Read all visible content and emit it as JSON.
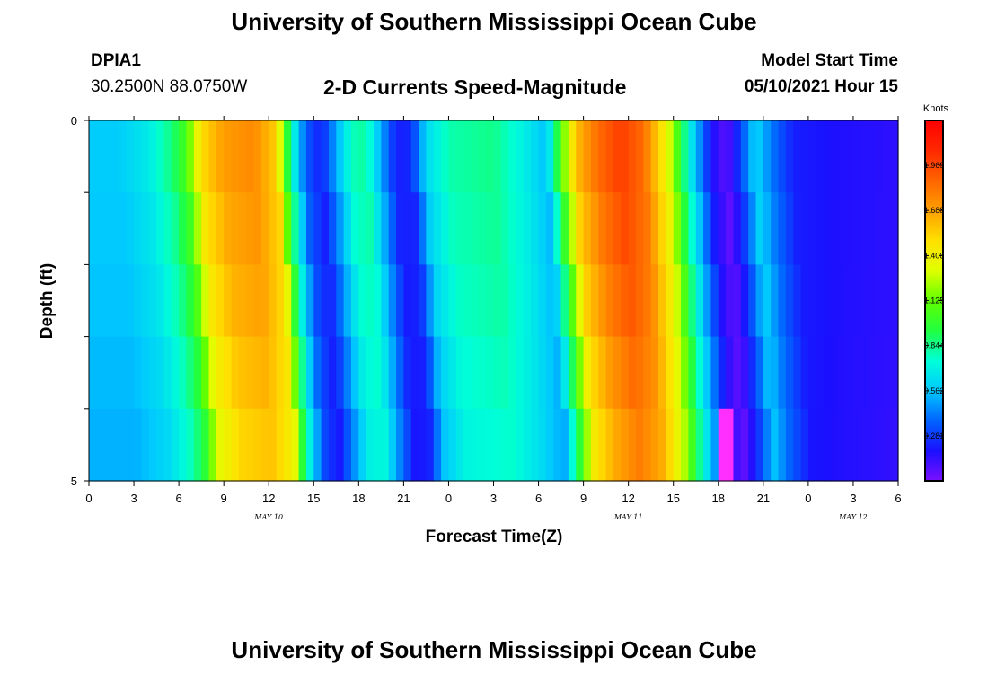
{
  "header": {
    "title": "University of Southern Mississippi Ocean Cube",
    "station": "DPIA1",
    "coords": "30.2500N  88.0750W",
    "chart_title": "2-D Currents Speed-Magnitude",
    "model_start_label": "Model Start Time",
    "model_start_value": "05/10/2021 Hour 15"
  },
  "footer": {
    "title": "University of Southern Mississippi Ocean Cube"
  },
  "chart_data": {
    "type": "heatmap",
    "title": "2-D Currents Speed-Magnitude",
    "xlabel": "Forecast Time(Z)",
    "ylabel": "Depth (ft)",
    "units": "Knots",
    "x_range_hours": [
      0,
      54
    ],
    "y_range": [
      0,
      5
    ],
    "y_ticks": [
      "0",
      "5"
    ],
    "x_tick_labels": [
      "0",
      "3",
      "6",
      "9",
      "12",
      "15",
      "18",
      "21",
      "0",
      "3",
      "6",
      "9",
      "12",
      "15",
      "18",
      "21",
      "0",
      "3",
      "6"
    ],
    "day_labels": [
      {
        "label": "MAY  10",
        "hour": 12
      },
      {
        "label": "MAY  11",
        "hour": 36
      },
      {
        "label": "MAY  12",
        "hour": 51
      }
    ],
    "colorbar": {
      "min": 0,
      "max": 2.25,
      "tick_labels": [
        "1.969",
        "1.688",
        "1.406",
        "1.125",
        "0.844",
        "0.562",
        "0.281"
      ],
      "tick_values": [
        1.969,
        1.688,
        1.406,
        1.125,
        0.844,
        0.562,
        0.281
      ],
      "colors": [
        "#7a10ff",
        "#1a10ff",
        "#0064ff",
        "#00c8ff",
        "#00ffd8",
        "#20ff40",
        "#60ff00",
        "#e0ff00",
        "#ffe000",
        "#ffa000",
        "#ff6400",
        "#ff2800",
        "#ff0000"
      ]
    },
    "depth_layers": 5,
    "speed_profile_knots": [
      {
        "hour": 0,
        "speed": 0.58
      },
      {
        "hour": 2,
        "speed": 0.58
      },
      {
        "hour": 4,
        "speed": 0.68
      },
      {
        "hour": 5.5,
        "speed": 0.86
      },
      {
        "hour": 6.5,
        "speed": 1.05
      },
      {
        "hour": 7.5,
        "speed": 1.5
      },
      {
        "hour": 9,
        "speed": 1.7
      },
      {
        "hour": 11,
        "speed": 1.76
      },
      {
        "hour": 12.5,
        "speed": 1.55
      },
      {
        "hour": 13,
        "speed": 1.1
      },
      {
        "hour": 13.7,
        "speed": 0.7
      },
      {
        "hour": 14.5,
        "speed": 0.35
      },
      {
        "hour": 15.5,
        "speed": 0.22
      },
      {
        "hour": 16.5,
        "speed": 0.5
      },
      {
        "hour": 17.5,
        "speed": 0.78
      },
      {
        "hour": 18.5,
        "speed": 0.82
      },
      {
        "hour": 19.5,
        "speed": 0.5
      },
      {
        "hour": 20.5,
        "speed": 0.22
      },
      {
        "hour": 21.5,
        "speed": 0.24
      },
      {
        "hour": 22.5,
        "speed": 0.62
      },
      {
        "hour": 24,
        "speed": 0.8
      },
      {
        "hour": 27,
        "speed": 0.85
      },
      {
        "hour": 29,
        "speed": 0.7
      },
      {
        "hour": 30.5,
        "speed": 0.55
      },
      {
        "hour": 31.5,
        "speed": 1.05
      },
      {
        "hour": 32.5,
        "speed": 1.6
      },
      {
        "hour": 34,
        "speed": 1.85
      },
      {
        "hour": 35.5,
        "speed": 2.0
      },
      {
        "hour": 37,
        "speed": 1.85
      },
      {
        "hour": 38.5,
        "speed": 1.4
      },
      {
        "hour": 39.5,
        "speed": 0.95
      },
      {
        "hour": 40.5,
        "speed": 0.55
      },
      {
        "hour": 41.5,
        "speed": 0.2
      },
      {
        "hour": 42.5,
        "speed": 0.05
      },
      {
        "hour": 43.5,
        "speed": 0.3
      },
      {
        "hour": 44.5,
        "speed": 0.62
      },
      {
        "hour": 45.5,
        "speed": 0.42
      },
      {
        "hour": 47,
        "speed": 0.22
      },
      {
        "hour": 50,
        "speed": 0.18
      },
      {
        "hour": 54,
        "speed": 0.15
      }
    ],
    "depth_lag_hours": [
      0,
      0.3,
      0.6,
      0.9,
      1.2
    ],
    "depth_scale": [
      1.0,
      0.98,
      0.96,
      0.93,
      0.9
    ],
    "anomaly": {
      "hour": 42.5,
      "layer": 4,
      "color": "#ff30ff"
    }
  }
}
